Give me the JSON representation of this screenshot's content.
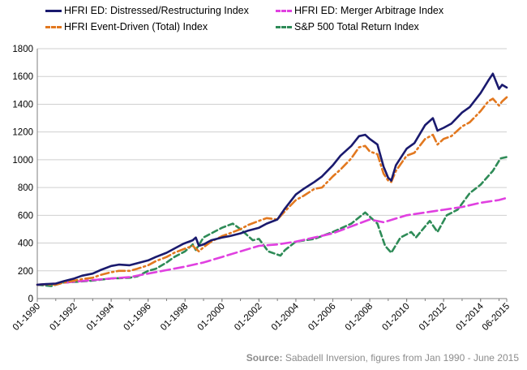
{
  "chart_data": {
    "type": "line",
    "title": "",
    "xlabel": "",
    "ylabel": "",
    "ylim": [
      0,
      1800
    ],
    "y_ticks": [
      "0",
      "200",
      "400",
      "600",
      "800",
      "1000",
      "1200",
      "1400",
      "1600",
      "1800"
    ],
    "x_tick_labels": [
      "01-1990",
      "01-1992",
      "01-1994",
      "01-1996",
      "01-1998",
      "01-2000",
      "01-2002",
      "01-2004",
      "01-2006",
      "01-2008",
      "01-2010",
      "01-2012",
      "01-2014",
      "06-2015"
    ],
    "grid": "horizontal",
    "legend_position": "top",
    "series": [
      {
        "name": "HFRI ED: Distressed/Restructuring Index",
        "color": "#1a1a6e",
        "style": "solid",
        "points": [
          [
            "1990-01",
            100
          ],
          [
            "1990-06",
            104
          ],
          [
            "1991-01",
            108
          ],
          [
            "1991-06",
            125
          ],
          [
            "1992-01",
            145
          ],
          [
            "1992-06",
            165
          ],
          [
            "1993-01",
            180
          ],
          [
            "1993-06",
            205
          ],
          [
            "1994-01",
            235
          ],
          [
            "1994-06",
            245
          ],
          [
            "1995-01",
            240
          ],
          [
            "1995-06",
            255
          ],
          [
            "1996-01",
            275
          ],
          [
            "1996-06",
            300
          ],
          [
            "1997-01",
            330
          ],
          [
            "1997-06",
            360
          ],
          [
            "1997-12",
            395
          ],
          [
            "1998-06",
            420
          ],
          [
            "1998-08",
            440
          ],
          [
            "1998-10",
            380
          ],
          [
            "1999-01",
            390
          ],
          [
            "1999-06",
            420
          ],
          [
            "2000-01",
            440
          ],
          [
            "2000-06",
            450
          ],
          [
            "2001-01",
            470
          ],
          [
            "2001-06",
            490
          ],
          [
            "2002-01",
            510
          ],
          [
            "2002-06",
            540
          ],
          [
            "2003-01",
            570
          ],
          [
            "2003-06",
            650
          ],
          [
            "2004-01",
            750
          ],
          [
            "2004-06",
            790
          ],
          [
            "2005-01",
            840
          ],
          [
            "2005-06",
            880
          ],
          [
            "2006-01",
            960
          ],
          [
            "2006-06",
            1030
          ],
          [
            "2007-01",
            1100
          ],
          [
            "2007-06",
            1170
          ],
          [
            "2007-10",
            1180
          ],
          [
            "2008-01",
            1150
          ],
          [
            "2008-06",
            1110
          ],
          [
            "2008-10",
            950
          ],
          [
            "2009-01",
            870
          ],
          [
            "2009-03",
            850
          ],
          [
            "2009-06",
            960
          ],
          [
            "2010-01",
            1080
          ],
          [
            "2010-06",
            1120
          ],
          [
            "2011-01",
            1250
          ],
          [
            "2011-06",
            1300
          ],
          [
            "2011-09",
            1210
          ],
          [
            "2012-01",
            1230
          ],
          [
            "2012-06",
            1260
          ],
          [
            "2013-01",
            1340
          ],
          [
            "2013-06",
            1380
          ],
          [
            "2014-01",
            1480
          ],
          [
            "2014-06",
            1570
          ],
          [
            "2014-09",
            1620
          ],
          [
            "2015-01",
            1510
          ],
          [
            "2015-03",
            1540
          ],
          [
            "2015-06",
            1520
          ]
        ]
      },
      {
        "name": "HFRI Event-Driven (Total) Index",
        "color": "#e2781f",
        "style": "dashdot",
        "points": [
          [
            "1990-01",
            100
          ],
          [
            "1990-06",
            103
          ],
          [
            "1991-01",
            100
          ],
          [
            "1991-06",
            115
          ],
          [
            "1992-01",
            130
          ],
          [
            "1992-06",
            140
          ],
          [
            "1993-01",
            150
          ],
          [
            "1993-06",
            170
          ],
          [
            "1994-01",
            190
          ],
          [
            "1994-06",
            200
          ],
          [
            "1995-01",
            200
          ],
          [
            "1995-06",
            215
          ],
          [
            "1996-01",
            240
          ],
          [
            "1996-06",
            270
          ],
          [
            "1997-01",
            300
          ],
          [
            "1997-06",
            330
          ],
          [
            "1998-01",
            360
          ],
          [
            "1998-06",
            380
          ],
          [
            "1998-10",
            340
          ],
          [
            "1999-01",
            370
          ],
          [
            "1999-06",
            410
          ],
          [
            "2000-01",
            450
          ],
          [
            "2000-06",
            470
          ],
          [
            "2001-01",
            500
          ],
          [
            "2001-06",
            530
          ],
          [
            "2002-01",
            560
          ],
          [
            "2002-06",
            580
          ],
          [
            "2003-01",
            570
          ],
          [
            "2003-06",
            630
          ],
          [
            "2004-01",
            710
          ],
          [
            "2004-06",
            740
          ],
          [
            "2005-01",
            790
          ],
          [
            "2005-06",
            800
          ],
          [
            "2006-01",
            880
          ],
          [
            "2006-06",
            930
          ],
          [
            "2007-01",
            1010
          ],
          [
            "2007-06",
            1090
          ],
          [
            "2007-10",
            1100
          ],
          [
            "2008-01",
            1060
          ],
          [
            "2008-06",
            1040
          ],
          [
            "2008-10",
            900
          ],
          [
            "2009-01",
            850
          ],
          [
            "2009-03",
            840
          ],
          [
            "2009-06",
            920
          ],
          [
            "2010-01",
            1030
          ],
          [
            "2010-06",
            1050
          ],
          [
            "2011-01",
            1150
          ],
          [
            "2011-06",
            1180
          ],
          [
            "2011-09",
            1110
          ],
          [
            "2012-01",
            1150
          ],
          [
            "2012-06",
            1170
          ],
          [
            "2013-01",
            1240
          ],
          [
            "2013-06",
            1270
          ],
          [
            "2014-01",
            1350
          ],
          [
            "2014-06",
            1420
          ],
          [
            "2014-09",
            1440
          ],
          [
            "2015-01",
            1390
          ],
          [
            "2015-03",
            1420
          ],
          [
            "2015-06",
            1450
          ]
        ]
      },
      {
        "name": "HFRI ED: Merger Arbitrage Index",
        "color": "#e040e0",
        "style": "longdash",
        "points": [
          [
            "1990-01",
            100
          ],
          [
            "1991-01",
            108
          ],
          [
            "1992-01",
            122
          ],
          [
            "1993-01",
            133
          ],
          [
            "1994-01",
            145
          ],
          [
            "1995-01",
            155
          ],
          [
            "1996-01",
            180
          ],
          [
            "1997-01",
            205
          ],
          [
            "1998-01",
            230
          ],
          [
            "1999-01",
            260
          ],
          [
            "2000-01",
            300
          ],
          [
            "2001-01",
            340
          ],
          [
            "2002-01",
            380
          ],
          [
            "2003-01",
            390
          ],
          [
            "2004-01",
            410
          ],
          [
            "2005-01",
            440
          ],
          [
            "2006-01",
            470
          ],
          [
            "2007-01",
            520
          ],
          [
            "2008-01",
            570
          ],
          [
            "2008-10",
            550
          ],
          [
            "2009-01",
            560
          ],
          [
            "2010-01",
            600
          ],
          [
            "2011-01",
            620
          ],
          [
            "2012-01",
            640
          ],
          [
            "2013-01",
            660
          ],
          [
            "2014-01",
            690
          ],
          [
            "2015-01",
            710
          ],
          [
            "2015-06",
            725
          ]
        ]
      },
      {
        "name": "S&P 500 Total Return Index",
        "color": "#2e8b57",
        "style": "dashed",
        "points": [
          [
            "1990-01",
            100
          ],
          [
            "1990-10",
            90
          ],
          [
            "1991-06",
            115
          ],
          [
            "1992-01",
            120
          ],
          [
            "1993-01",
            130
          ],
          [
            "1994-01",
            145
          ],
          [
            "1995-01",
            150
          ],
          [
            "1995-06",
            160
          ],
          [
            "1996-01",
            200
          ],
          [
            "1996-06",
            215
          ],
          [
            "1997-01",
            260
          ],
          [
            "1997-06",
            300
          ],
          [
            "1998-01",
            340
          ],
          [
            "1998-06",
            390
          ],
          [
            "1998-08",
            350
          ],
          [
            "1999-01",
            440
          ],
          [
            "1999-06",
            470
          ],
          [
            "2000-01",
            510
          ],
          [
            "2000-08",
            540
          ],
          [
            "2001-01",
            500
          ],
          [
            "2001-09",
            420
          ],
          [
            "2002-01",
            430
          ],
          [
            "2002-07",
            340
          ],
          [
            "2003-03",
            310
          ],
          [
            "2003-06",
            350
          ],
          [
            "2004-01",
            410
          ],
          [
            "2005-01",
            430
          ],
          [
            "2006-01",
            480
          ],
          [
            "2007-01",
            540
          ],
          [
            "2007-10",
            620
          ],
          [
            "2008-06",
            540
          ],
          [
            "2008-11",
            380
          ],
          [
            "2009-03",
            330
          ],
          [
            "2009-09",
            440
          ],
          [
            "2010-04",
            480
          ],
          [
            "2010-07",
            440
          ],
          [
            "2011-04",
            560
          ],
          [
            "2011-09",
            480
          ],
          [
            "2012-03",
            600
          ],
          [
            "2012-10",
            640
          ],
          [
            "2013-06",
            760
          ],
          [
            "2014-01",
            820
          ],
          [
            "2014-09",
            920
          ],
          [
            "2015-02",
            1010
          ],
          [
            "2015-06",
            1020
          ]
        ]
      }
    ]
  },
  "source": {
    "label": "Source:",
    "text": " Sabadell Inversion, figures from Jan 1990 - June 2015"
  }
}
